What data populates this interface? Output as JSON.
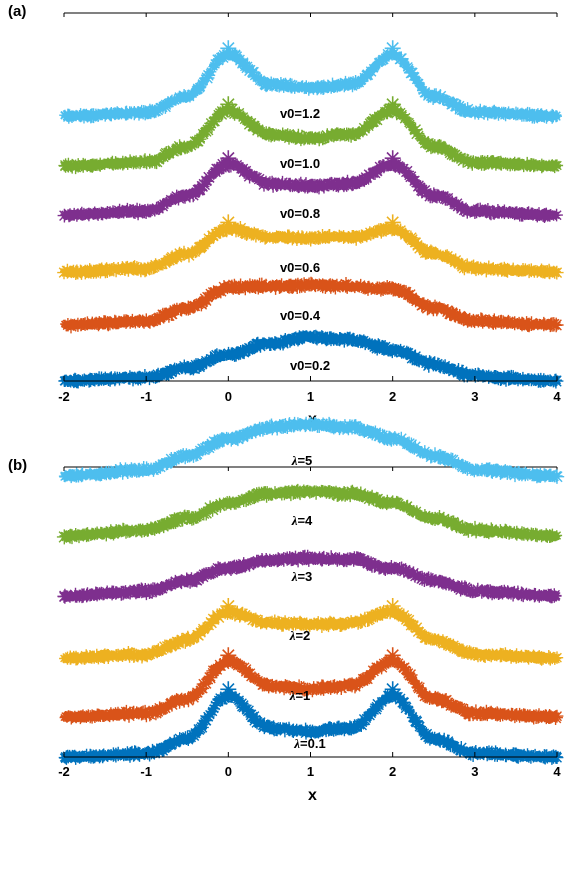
{
  "chart_data": [
    {
      "type": "line",
      "panel_label": "(a)",
      "xlabel": "x",
      "ylabel": "",
      "xlim": [
        -2,
        4
      ],
      "xticks": [
        "-2",
        "-1",
        "0",
        "1",
        "2",
        "3",
        "4"
      ],
      "marker": "asterisk",
      "grid": false,
      "series": [
        {
          "name": "v0=0.2",
          "color": "#0072BD",
          "x": [
            -2,
            -1,
            -0.5,
            0,
            0.5,
            1,
            1.5,
            2,
            2.5,
            3,
            4
          ],
          "y": [
            0.0,
            0.06,
            0.22,
            0.44,
            0.62,
            0.72,
            0.68,
            0.52,
            0.28,
            0.08,
            0.0
          ]
        },
        {
          "name": "v0=0.4",
          "color": "#D95319",
          "x": [
            -2,
            -1,
            -0.5,
            0,
            0.5,
            1,
            1.5,
            2,
            2.5,
            3,
            4
          ],
          "y": [
            0.0,
            0.06,
            0.28,
            0.62,
            0.64,
            0.66,
            0.64,
            0.6,
            0.28,
            0.06,
            0.0
          ]
        },
        {
          "name": "v0=0.6",
          "color": "#EDB120",
          "x": [
            -2,
            -1,
            -0.5,
            0,
            0.5,
            1,
            1.5,
            2,
            2.5,
            3,
            4
          ],
          "y": [
            0.0,
            0.06,
            0.3,
            0.72,
            0.58,
            0.56,
            0.58,
            0.72,
            0.3,
            0.06,
            0.0
          ]
        },
        {
          "name": "v0=0.8",
          "color": "#7E2F8E",
          "x": [
            -2,
            -1,
            -0.5,
            0,
            0.5,
            1,
            1.5,
            2,
            2.5,
            3,
            4
          ],
          "y": [
            0.0,
            0.06,
            0.32,
            0.84,
            0.52,
            0.48,
            0.52,
            0.84,
            0.32,
            0.06,
            0.0
          ]
        },
        {
          "name": "v0=1.0",
          "color": "#77AC30",
          "x": [
            -2,
            -1,
            -0.5,
            0,
            0.5,
            1,
            1.5,
            2,
            2.5,
            3,
            4
          ],
          "y": [
            0.0,
            0.06,
            0.32,
            0.92,
            0.52,
            0.46,
            0.52,
            0.92,
            0.32,
            0.06,
            0.0
          ]
        },
        {
          "name": "v0=1.2",
          "color": "#4DBEEE",
          "x": [
            -2,
            -1,
            -0.5,
            0,
            0.5,
            1,
            1.5,
            2,
            2.5,
            3,
            4
          ],
          "y": [
            0.0,
            0.06,
            0.32,
            1.02,
            0.52,
            0.46,
            0.52,
            1.02,
            0.32,
            0.06,
            0.0
          ]
        }
      ]
    },
    {
      "type": "line",
      "panel_label": "(b)",
      "xlabel": "x",
      "ylabel": "",
      "xlim": [
        -2,
        4
      ],
      "xticks": [
        "-2",
        "-1",
        "0",
        "1",
        "2",
        "3",
        "4"
      ],
      "marker": "asterisk",
      "grid": false,
      "series": [
        {
          "name": "λ=0.1",
          "prefix": "λ",
          "suffix": "=0.1",
          "color": "#0072BD",
          "x": [
            -2,
            -1,
            -0.5,
            0,
            0.5,
            1,
            1.5,
            2,
            2.5,
            3,
            4
          ],
          "y": [
            0.0,
            0.06,
            0.3,
            1.02,
            0.48,
            0.42,
            0.48,
            1.02,
            0.3,
            0.06,
            0.0
          ]
        },
        {
          "name": "λ=1",
          "prefix": "λ",
          "suffix": "=1",
          "color": "#D95319",
          "x": [
            -2,
            -1,
            -0.5,
            0,
            0.5,
            1,
            1.5,
            2,
            2.5,
            3,
            4
          ],
          "y": [
            0.0,
            0.06,
            0.3,
            0.92,
            0.52,
            0.46,
            0.52,
            0.92,
            0.3,
            0.06,
            0.0
          ]
        },
        {
          "name": "λ=2",
          "prefix": "λ",
          "suffix": "=2",
          "color": "#EDB120",
          "x": [
            -2,
            -1,
            -0.5,
            0,
            0.5,
            1,
            1.5,
            2,
            2.5,
            3,
            4
          ],
          "y": [
            0.0,
            0.06,
            0.3,
            0.76,
            0.58,
            0.56,
            0.58,
            0.76,
            0.3,
            0.06,
            0.0
          ]
        },
        {
          "name": "λ=3",
          "prefix": "λ",
          "suffix": "=3",
          "color": "#7E2F8E",
          "x": [
            -2,
            -1,
            -0.5,
            0,
            0.5,
            1,
            1.5,
            2,
            2.5,
            3,
            4
          ],
          "y": [
            0.0,
            0.08,
            0.26,
            0.46,
            0.6,
            0.62,
            0.6,
            0.46,
            0.26,
            0.08,
            0.0
          ]
        },
        {
          "name": "λ=4",
          "prefix": "λ",
          "suffix": "=4",
          "color": "#77AC30",
          "x": [
            -2,
            -1,
            -0.5,
            0,
            0.5,
            1,
            1.5,
            2,
            2.5,
            3,
            4
          ],
          "y": [
            0.0,
            0.1,
            0.3,
            0.54,
            0.7,
            0.74,
            0.7,
            0.54,
            0.3,
            0.1,
            0.0
          ]
        },
        {
          "name": "λ=5",
          "prefix": "λ",
          "suffix": "=5",
          "color": "#4DBEEE",
          "x": [
            -2,
            -1,
            -0.5,
            0,
            0.5,
            1,
            1.5,
            2,
            2.5,
            3,
            4
          ],
          "y": [
            0.0,
            0.1,
            0.34,
            0.62,
            0.8,
            0.86,
            0.8,
            0.62,
            0.34,
            0.1,
            0.0
          ]
        }
      ]
    }
  ]
}
